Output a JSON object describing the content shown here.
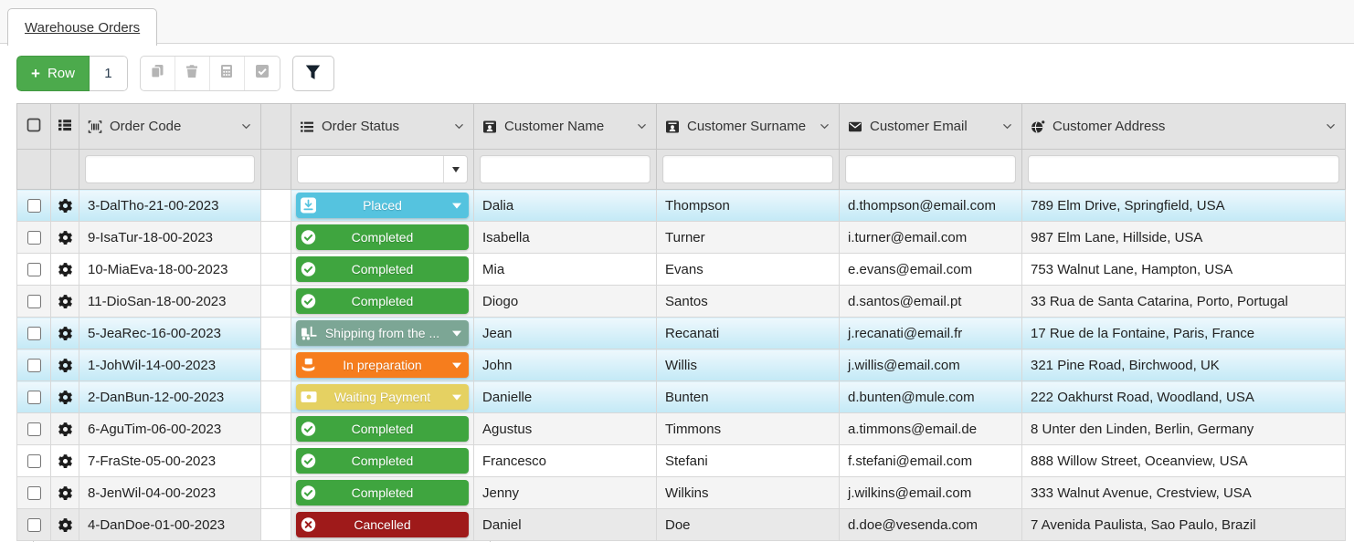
{
  "tab": {
    "label": "Warehouse Orders"
  },
  "toolbar": {
    "add_row": {
      "plus": "+",
      "label": "Row",
      "count": "1"
    },
    "action_icons": [
      "copy-icon",
      "trash-icon",
      "calculator-icon",
      "checkbox-checked-icon"
    ],
    "filter_icon": "filter-funnel-icon"
  },
  "colors": {
    "add_row_green": "#4caa4c",
    "header_bg": "#e3e3e3",
    "row_highlight_top": "#eef8fd",
    "row_highlight_bottom": "#c3e9f6"
  },
  "table": {
    "columns": [
      {
        "key": "select",
        "label": "",
        "icon": "checkbox-outline-icon"
      },
      {
        "key": "actions",
        "label": "",
        "icon": "list-menu-icon"
      },
      {
        "key": "order_code",
        "label": "Order Code",
        "icon": "barcode-icon",
        "sortable": true
      },
      {
        "key": "spacer",
        "label": "",
        "icon": ""
      },
      {
        "key": "order_status",
        "label": "Order Status",
        "icon": "list-status-icon",
        "sortable": true
      },
      {
        "key": "customer_name",
        "label": "Customer Name",
        "icon": "contact-card-icon",
        "sortable": true
      },
      {
        "key": "customer_surname",
        "label": "Customer Surname",
        "icon": "contact-card-icon",
        "sortable": true
      },
      {
        "key": "customer_email",
        "label": "Customer Email",
        "icon": "envelope-icon",
        "sortable": true
      },
      {
        "key": "customer_address",
        "label": "Customer Address",
        "icon": "globe-icon",
        "sortable": true
      }
    ],
    "filters": {
      "order_code": "",
      "order_status": "",
      "customer_name": "",
      "customer_surname": "",
      "customer_email": "",
      "customer_address": ""
    },
    "statuses": {
      "placed": {
        "label": "Placed",
        "color": "#55c3df",
        "icon": "inbox-down-icon",
        "caret": true
      },
      "completed": {
        "label": "Completed",
        "color": "#3fa53f",
        "icon": "check-seal-icon",
        "caret": false
      },
      "shipping": {
        "label": "Shipping from the ...",
        "color": "#7ca695",
        "icon": "forklift-icon",
        "caret": true
      },
      "in_preparation": {
        "label": "In preparation",
        "color": "#f67d1d",
        "icon": "box-hand-icon",
        "caret": true
      },
      "waiting_payment": {
        "label": "Waiting Payment",
        "color": "#e5d162",
        "icon": "banknote-icon",
        "caret": true
      },
      "cancelled": {
        "label": "Cancelled",
        "color": "#9f1a1a",
        "icon": "x-circle-icon",
        "caret": false
      }
    },
    "row_icons": [
      "gear-icon"
    ],
    "rows": [
      {
        "code": "3-DalTho-21-00-2023",
        "status": "placed",
        "name": "Dalia",
        "surname": "Thompson",
        "email": "d.thompson@email.com",
        "address": "789 Elm Drive, Springfield, USA",
        "stripe": "blue"
      },
      {
        "code": "9-IsaTur-18-00-2023",
        "status": "completed",
        "name": "Isabella",
        "surname": "Turner",
        "email": "i.turner@email.com",
        "address": "987 Elm Lane, Hillside, USA",
        "stripe": "gray"
      },
      {
        "code": "10-MiaEva-18-00-2023",
        "status": "completed",
        "name": "Mia",
        "surname": "Evans",
        "email": "e.evans@email.com",
        "address": "753 Walnut Lane, Hampton, USA",
        "stripe": "white"
      },
      {
        "code": "11-DioSan-18-00-2023",
        "status": "completed",
        "name": "Diogo",
        "surname": "Santos",
        "email": "d.santos@email.pt",
        "address": "33 Rua de Santa Catarina, Porto, Portugal",
        "stripe": "gray"
      },
      {
        "code": "5-JeaRec-16-00-2023",
        "status": "shipping",
        "name": "Jean",
        "surname": "Recanati",
        "email": "j.recanati@email.fr",
        "address": "17 Rue de la Fontaine, Paris, France",
        "stripe": "blue"
      },
      {
        "code": "1-JohWil-14-00-2023",
        "status": "in_preparation",
        "name": "John",
        "surname": "Willis",
        "email": "j.willis@email.com",
        "address": "321 Pine Road, Birchwood, UK",
        "stripe": "blue"
      },
      {
        "code": "2-DanBun-12-00-2023",
        "status": "waiting_payment",
        "name": "Danielle",
        "surname": "Bunten",
        "email": "d.bunten@mule.com",
        "address": "222 Oakhurst Road, Woodland, USA",
        "stripe": "blue"
      },
      {
        "code": "6-AguTim-06-00-2023",
        "status": "completed",
        "name": "Agustus",
        "surname": "Timmons",
        "email": "a.timmons@email.de",
        "address": "8 Unter den Linden, Berlin, Germany",
        "stripe": "gray"
      },
      {
        "code": "7-FraSte-05-00-2023",
        "status": "completed",
        "name": "Francesco",
        "surname": "Stefani",
        "email": "f.stefani@email.com",
        "address": "888 Willow Street, Oceanview, USA",
        "stripe": "white"
      },
      {
        "code": "8-JenWil-04-00-2023",
        "status": "completed",
        "name": "Jenny",
        "surname": "Wilkins",
        "email": "j.wilkins@email.com",
        "address": "333 Walnut Avenue, Crestview, USA",
        "stripe": "gray"
      },
      {
        "code": "4-DanDoe-01-00-2023",
        "status": "cancelled",
        "name": "Daniel",
        "surname": "Doe",
        "email": "d.doe@vesenda.com",
        "address": "7 Avenida Paulista, Sao Paulo, Brazil",
        "stripe": "dark"
      }
    ]
  }
}
